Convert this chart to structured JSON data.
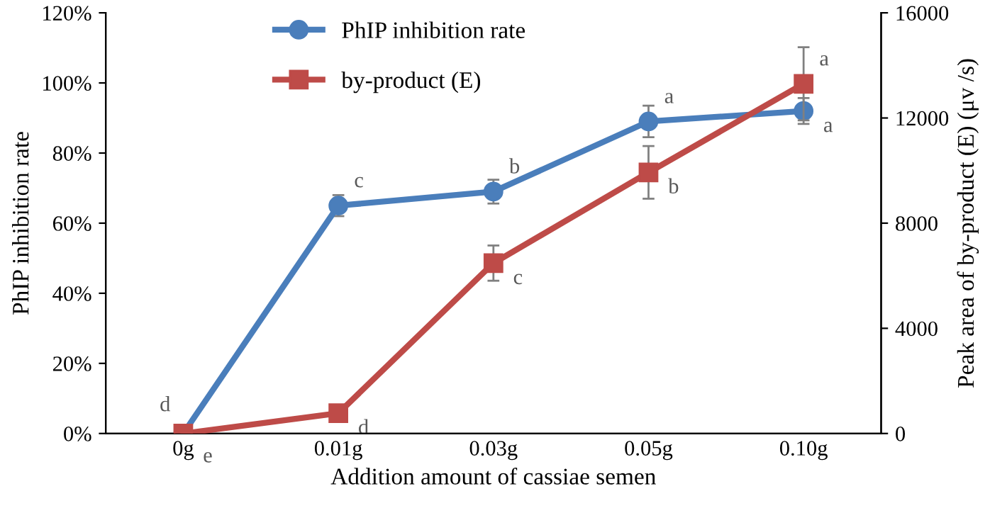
{
  "chart_data": {
    "type": "line",
    "xlabel": "Addition amount of cassiae semen",
    "ylabel": "PhIP inhibition rate",
    "y2label": "Peak area of by-product (E) (μv /s)",
    "categories": [
      "0g",
      "0.01g",
      "0.03g",
      "0.05g",
      "0.10g"
    ],
    "series": [
      {
        "name": "PhIP inhibition rate",
        "color": "#4a7ebb",
        "marker": "circle",
        "values": [
          0,
          65,
          69,
          89,
          92
        ],
        "errors": [
          null,
          3,
          3.4,
          4.5,
          3.7
        ]
      },
      {
        "name": "by-product (E)",
        "color": "#be4b48",
        "marker": "square",
        "axis": "y2",
        "values": [
          0,
          770,
          6480,
          9930,
          13300
        ],
        "errors": [
          null,
          null,
          670,
          1000,
          1390
        ]
      }
    ],
    "ylim": [
      0,
      120
    ],
    "yticks": [
      {
        "value": 0,
        "label": "0%"
      },
      {
        "value": 20,
        "label": "20%"
      },
      {
        "value": 40,
        "label": "40%"
      },
      {
        "value": 60,
        "label": "60%"
      },
      {
        "value": 80,
        "label": "80%"
      },
      {
        "value": 100,
        "label": "100%"
      },
      {
        "value": 120,
        "label": "120%"
      }
    ],
    "y2lim": [
      0,
      16000
    ],
    "y2ticks": [
      0,
      4000,
      8000,
      12000,
      16000
    ],
    "annotations": [
      {
        "text": "d",
        "x": "0g",
        "y": 0
      },
      {
        "text": "e",
        "x": "0g",
        "y": 0
      },
      {
        "text": "c",
        "x": "0.01g",
        "y": 65
      },
      {
        "text": "b",
        "x": "0.03g",
        "y": 69
      },
      {
        "text": "a",
        "x": "0.05g",
        "y": 89
      },
      {
        "text": "a",
        "x": "0.10g",
        "y": 92
      },
      {
        "text": "d",
        "x": "0.01g",
        "y": 5.8
      },
      {
        "text": "c",
        "x": "0.03g",
        "y": 48.6
      },
      {
        "text": "b",
        "x": "0.05g",
        "y": 74.5
      },
      {
        "text": "a",
        "x": "0.10g",
        "y": 99.75
      }
    ],
    "legend": "top",
    "grid": false,
    "line_style": "solid"
  }
}
